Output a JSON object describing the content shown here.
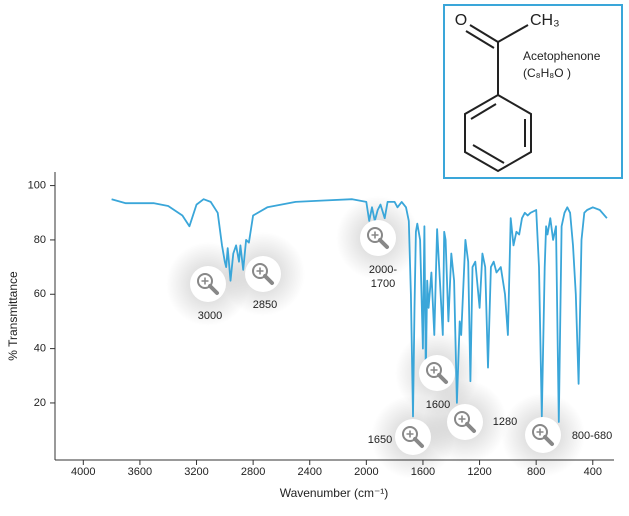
{
  "chart_data": {
    "type": "line",
    "xlabel": "Wavenumber (cm⁻¹)",
    "ylabel": "% Transmittance",
    "xlim": [
      4200,
      250
    ],
    "ylim": [
      -1,
      105
    ],
    "xticks": [
      4000,
      3600,
      3200,
      2800,
      2400,
      2000,
      1600,
      1200,
      800,
      400
    ],
    "yticks": [
      20,
      40,
      60,
      80,
      100
    ],
    "series": [
      {
        "name": "Acetophenone",
        "color": "#3aa6d9",
        "x": [
          3800,
          3700,
          3500,
          3400,
          3300,
          3250,
          3200,
          3150,
          3100,
          3050,
          3020,
          3000,
          2990,
          2980,
          2960,
          2940,
          2920,
          2900,
          2890,
          2870,
          2850,
          2830,
          2800,
          2700,
          2500,
          2300,
          2100,
          2000,
          1980,
          1960,
          1940,
          1920,
          1900,
          1870,
          1850,
          1800,
          1780,
          1750,
          1720,
          1700,
          1685,
          1670,
          1660,
          1650,
          1640,
          1620,
          1600,
          1590,
          1580,
          1570,
          1560,
          1540,
          1520,
          1500,
          1480,
          1460,
          1450,
          1440,
          1420,
          1400,
          1380,
          1360,
          1340,
          1330,
          1300,
          1280,
          1265,
          1250,
          1230,
          1200,
          1180,
          1160,
          1140,
          1120,
          1100,
          1080,
          1050,
          1020,
          1000,
          980,
          960,
          940,
          920,
          900,
          880,
          860,
          840,
          800,
          780,
          760,
          740,
          730,
          720,
          700,
          680,
          660,
          640,
          620,
          600,
          580,
          560,
          540,
          520,
          500,
          480,
          460,
          440,
          400,
          350,
          300
        ],
        "values": [
          95,
          93.5,
          93.5,
          92.5,
          89,
          85,
          93,
          95,
          94,
          90,
          78,
          72,
          70,
          77,
          65,
          75,
          78,
          72,
          78,
          69,
          80,
          79,
          89,
          92,
          94,
          94.5,
          95,
          94,
          87,
          92,
          87,
          91,
          93,
          88,
          94,
          94,
          92,
          94,
          92,
          87,
          60,
          15,
          55,
          83,
          86,
          80,
          40,
          85,
          30,
          65,
          55,
          68,
          45,
          84,
          65,
          45,
          83,
          80,
          50,
          75,
          65,
          20,
          50,
          45,
          80,
          72,
          28,
          70,
          72,
          55,
          75,
          70,
          33,
          70,
          72,
          68,
          70,
          60,
          45,
          88,
          78,
          83,
          82,
          88,
          90,
          89,
          90,
          91,
          70,
          15,
          70,
          85,
          82,
          88,
          80,
          85,
          13,
          85,
          90,
          92,
          90,
          78,
          60,
          27,
          80,
          90,
          91,
          92,
          91,
          88
        ]
      }
    ],
    "annotations": [
      {
        "lines": [
          "3000"
        ]
      },
      {
        "lines": [
          "2850"
        ]
      },
      {
        "lines": [
          "2000-",
          "1700"
        ]
      },
      {
        "lines": [
          "1600"
        ]
      },
      {
        "lines": [
          "1650"
        ]
      },
      {
        "lines": [
          "1280"
        ]
      },
      {
        "lines": [
          "800-680"
        ]
      }
    ],
    "inset": {
      "name": "Acetophenone",
      "formula": "(C₈H₈O )",
      "atoms": [
        "O",
        "CH₃"
      ]
    }
  }
}
